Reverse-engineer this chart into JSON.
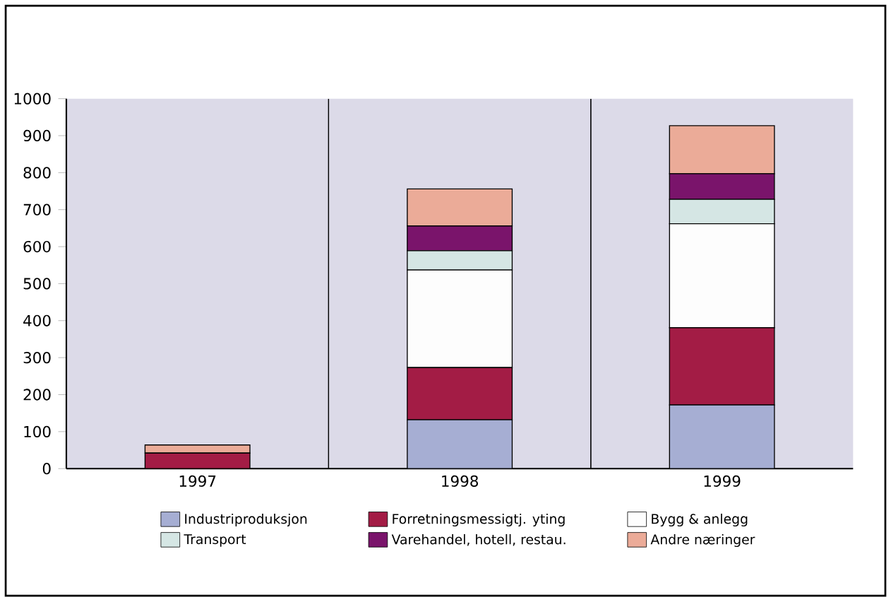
{
  "chart_data": {
    "type": "bar",
    "stacked": true,
    "categories": [
      "1997",
      "1998",
      "1999"
    ],
    "series": [
      {
        "name": "Industriproduksjon",
        "color": "#a6aed3",
        "values": [
          0,
          132,
          172
        ]
      },
      {
        "name": "Forretningsmessigtj. yting",
        "color": "#a31c45",
        "values": [
          42,
          141,
          209
        ]
      },
      {
        "name": "Bygg & anlegg",
        "color": "#fdfdfd",
        "values": [
          0,
          264,
          281
        ]
      },
      {
        "name": "Transport",
        "color": "#d5e6e4",
        "values": [
          0,
          52,
          66
        ]
      },
      {
        "name": "Varehandel, hotell, restau.",
        "color": "#7a146b",
        "values": [
          0,
          67,
          69
        ]
      },
      {
        "name": "Andre næringer",
        "color": "#ebab98",
        "values": [
          22,
          100,
          130
        ]
      }
    ],
    "ylim": [
      0,
      1000
    ],
    "yticks": [
      0,
      100,
      200,
      300,
      400,
      500,
      600,
      700,
      800,
      900,
      1000
    ],
    "grid": "x",
    "legend": "bottom"
  }
}
